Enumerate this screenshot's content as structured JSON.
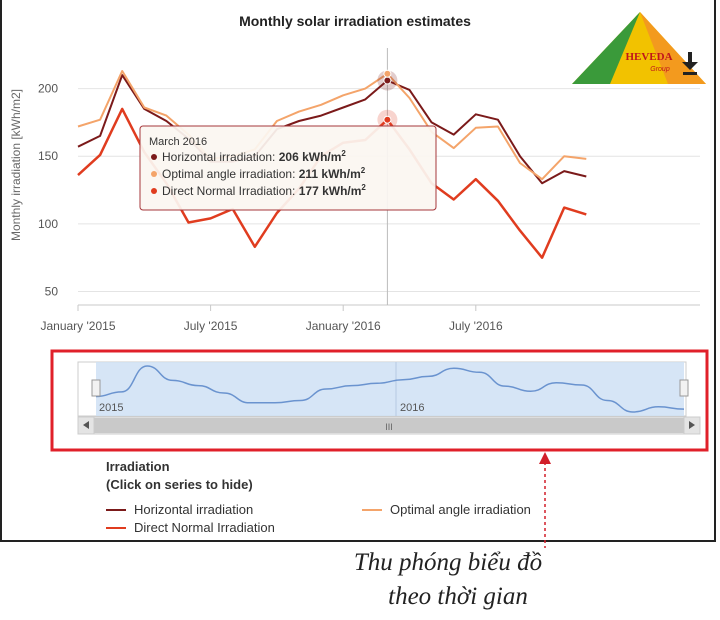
{
  "chart_data": {
    "type": "line",
    "title": "Monthly solar irradiation estimates",
    "ylabel": "Monthly irradiation [kWh/m2]",
    "xlabel": "",
    "ylim": [
      40,
      230
    ],
    "y_ticks": [
      50,
      100,
      150,
      200
    ],
    "x_ticks": [
      "January '2015",
      "July '2015",
      "January '2016",
      "July '2016"
    ],
    "months": [
      "Jan 2015",
      "Feb 2015",
      "Mar 2015",
      "Apr 2015",
      "May 2015",
      "Jun 2015",
      "Jul 2015",
      "Aug 2015",
      "Sep 2015",
      "Oct 2015",
      "Nov 2015",
      "Dec 2015",
      "Jan 2016",
      "Feb 2016",
      "Mar 2016",
      "Apr 2016",
      "May 2016",
      "Jun 2016",
      "Jul 2016",
      "Aug 2016",
      "Sep 2016",
      "Oct 2016",
      "Nov 2016",
      "Dec 2016"
    ],
    "series": [
      {
        "name": "Horizontal irradiation",
        "color": "#7b1a1a",
        "values": [
          157,
          165,
          210,
          185,
          176,
          163,
          146,
          146,
          150,
          170,
          176,
          180,
          186,
          192,
          206,
          199,
          175,
          166,
          181,
          177,
          150,
          130,
          139,
          135
        ]
      },
      {
        "name": "Optimal angle irradiation",
        "color": "#f4a46a",
        "values": [
          172,
          177,
          213,
          186,
          180,
          166,
          148,
          150,
          155,
          176,
          183,
          188,
          195,
          200,
          211,
          193,
          168,
          156,
          171,
          172,
          145,
          133,
          150,
          148
        ]
      },
      {
        "name": "Direct Normal Irradiation",
        "color": "#e03c1f",
        "values": [
          136,
          151,
          185,
          153,
          130,
          101,
          104,
          111,
          83,
          108,
          126,
          150,
          160,
          162,
          177,
          155,
          130,
          118,
          133,
          117,
          95,
          75,
          112,
          107
        ]
      }
    ],
    "tooltip": {
      "date": "March 2016",
      "rows": [
        {
          "label": "Horizontal irradiation:",
          "value": "206 kWh/m",
          "sup": "2",
          "color": "#7b1a1a"
        },
        {
          "label": "Optimal angle irradiation:",
          "value": "211 kWh/m",
          "sup": "2",
          "color": "#f4a46a"
        },
        {
          "label": "Direct Normal Irradiation:",
          "value": "177 kWh/m",
          "sup": "2",
          "color": "#e03c1f"
        }
      ]
    },
    "navigator": {
      "labels": [
        "2015",
        "2016"
      ],
      "scroll_grip": "III"
    },
    "legend": {
      "title": "Irradiation",
      "subtitle": "(Click on series to hide)",
      "placement": "bottom-left"
    }
  },
  "logo": {
    "text": "HEVEDA",
    "subtext": "Group"
  },
  "caption": {
    "line1": "Thu phóng biểu đồ",
    "line2": "theo thời gian"
  },
  "colors": {
    "zoom_box": "#e0202a",
    "navigator_fill": "#cfe0f5",
    "navigator_line": "#6a93cf",
    "grid": "#e4e4e4",
    "crosshair": "#bbbbbb"
  }
}
